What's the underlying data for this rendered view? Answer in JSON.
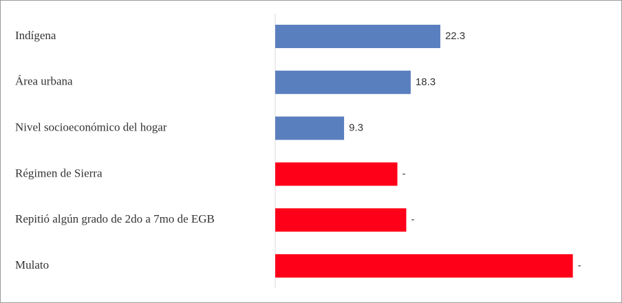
{
  "chart_data": {
    "type": "hbar",
    "categories": [
      "Indígena",
      "Área urbana",
      "Nivel socioeconómico del hogar",
      "Régimen de Sierra",
      "Repitió algún grado de 2do a 7mo de EGB",
      "Mulato"
    ],
    "values": [
      22.3,
      18.3,
      9.3,
      16.5,
      17.7,
      40.2
    ],
    "value_labels": [
      "22.3",
      "18.3",
      "9.3",
      "-",
      "-",
      "-"
    ],
    "colors": [
      "#5a7fbf",
      "#5a7fbf",
      "#5a7fbf",
      "#ff0019",
      "#ff0019",
      "#ff0019"
    ],
    "xlim": [
      0,
      43
    ]
  }
}
